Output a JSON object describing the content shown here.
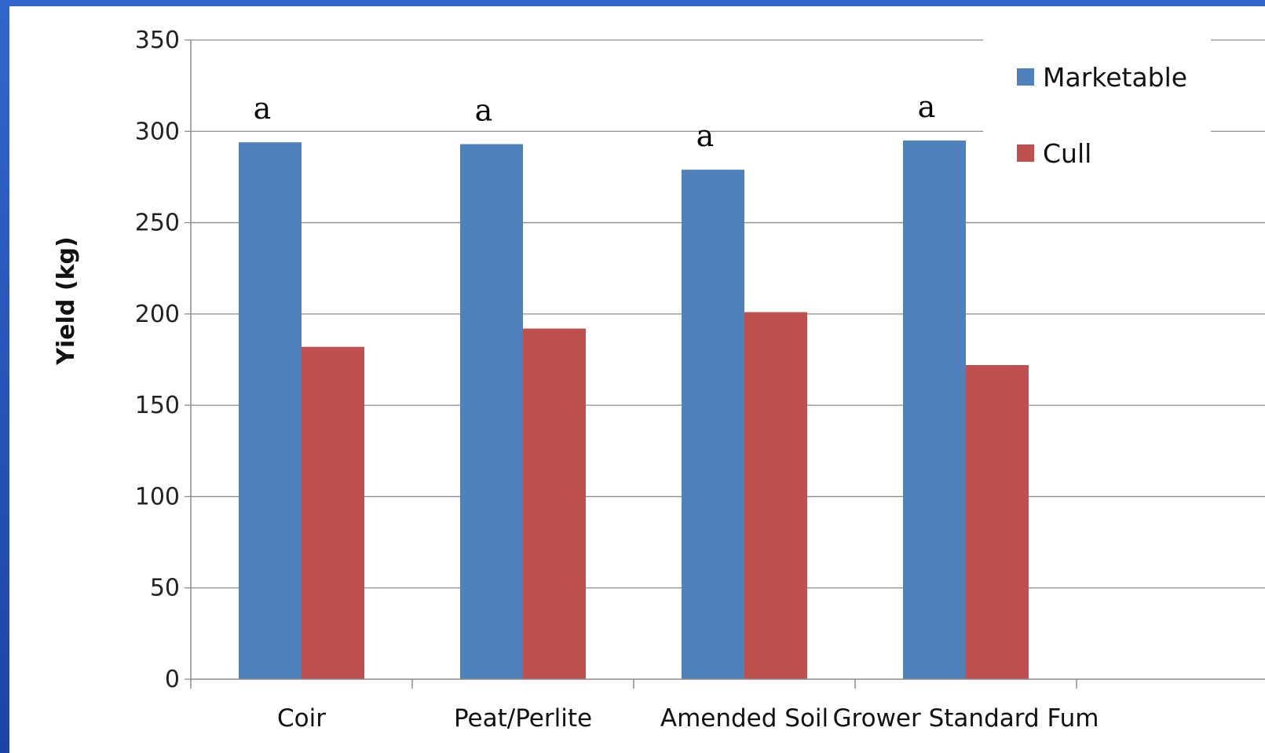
{
  "chart_data": {
    "type": "bar",
    "title": "",
    "xlabel": "",
    "ylabel": "Yield (kg)",
    "ylim": [
      0,
      350
    ],
    "yticks": [
      0,
      50,
      100,
      150,
      200,
      250,
      300,
      350
    ],
    "grid": true,
    "legend_position": "top-right",
    "categories": [
      "Coir",
      "Peat/Perlite",
      "Amended Soil",
      "Grower Standard Fum"
    ],
    "series": [
      {
        "name": "Marketable",
        "color": "#4f81bd",
        "values": [
          294,
          293,
          279,
          295
        ]
      },
      {
        "name": "Cull",
        "color": "#c0504d",
        "values": [
          182,
          192,
          201,
          172
        ]
      }
    ],
    "annotations": [
      {
        "category": "Coir",
        "text": "a"
      },
      {
        "category": "Peat/Perlite",
        "text": "a"
      },
      {
        "category": "Amended Soil",
        "text": "a"
      },
      {
        "category": "Grower Standard Fum",
        "text": "a"
      }
    ]
  }
}
